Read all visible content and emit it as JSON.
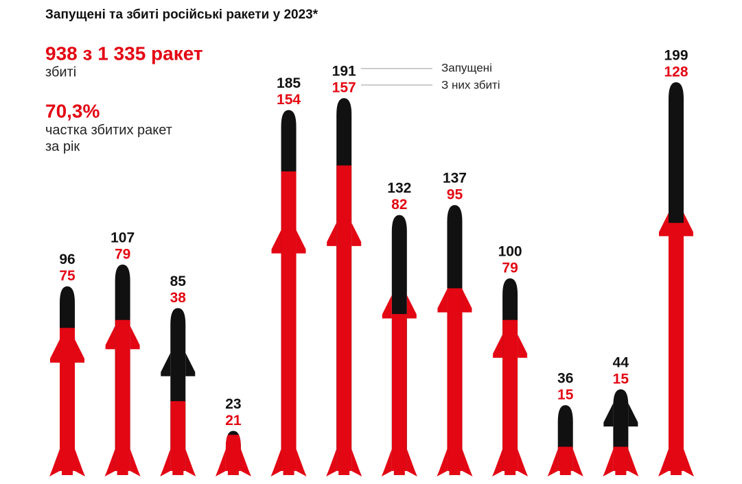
{
  "chart_data": {
    "type": "rocket",
    "title": "Запущені та збиті російські ракети у 2023*",
    "headline": "938 з 1 335 ракет",
    "headline_caption": "збиті",
    "share": "70,3%",
    "share_caption": "частка збитих ракет за рік",
    "series": [
      {
        "name": "Запущені",
        "color": "#111111",
        "values": [
          96,
          107,
          85,
          23,
          185,
          191,
          132,
          137,
          100,
          36,
          44,
          199
        ]
      },
      {
        "name": "З них збиті",
        "color": "#e30613",
        "values": [
          75,
          79,
          38,
          21,
          154,
          157,
          82,
          95,
          79,
          15,
          15,
          128
        ]
      }
    ]
  }
}
